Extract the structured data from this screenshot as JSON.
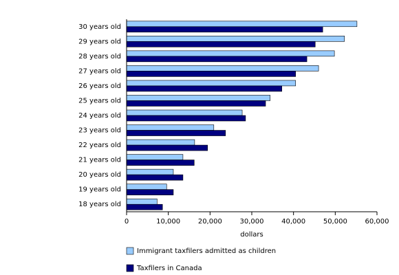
{
  "chart_data": {
    "type": "hbar",
    "categories": [
      "30 years old",
      "29 years old",
      "28 years old",
      "27 years old",
      "26 years old",
      "25 years old",
      "24 years old",
      "23 years old",
      "22 years old",
      "21 years old",
      "20 years old",
      "19 years old",
      "18 years old"
    ],
    "series": [
      {
        "name": "Immigrant taxfilers admitted as children",
        "color": "#99ccff",
        "values": [
          55200,
          52200,
          49800,
          46000,
          40500,
          34400,
          27700,
          20900,
          16300,
          13500,
          11200,
          9600,
          7300
        ]
      },
      {
        "name": "Taxfilers in Canada",
        "color": "#000080",
        "values": [
          47000,
          45200,
          43200,
          40500,
          37200,
          33300,
          28500,
          23700,
          19400,
          16200,
          13500,
          11200,
          8600
        ]
      }
    ],
    "xlabel": "dollars",
    "xlim": [
      0,
      60000
    ],
    "xticks": [
      0,
      {
        "value": 10000,
        "label": "10,000"
      },
      {
        "value": 20000,
        "label": "20,000"
      },
      {
        "value": 30000,
        "label": "30,000"
      },
      {
        "value": 40000,
        "label": "40,000"
      },
      {
        "value": 50000,
        "label": "50,000"
      },
      {
        "value": 60000,
        "label": "60,000"
      }
    ],
    "legend": "bottom-left"
  }
}
